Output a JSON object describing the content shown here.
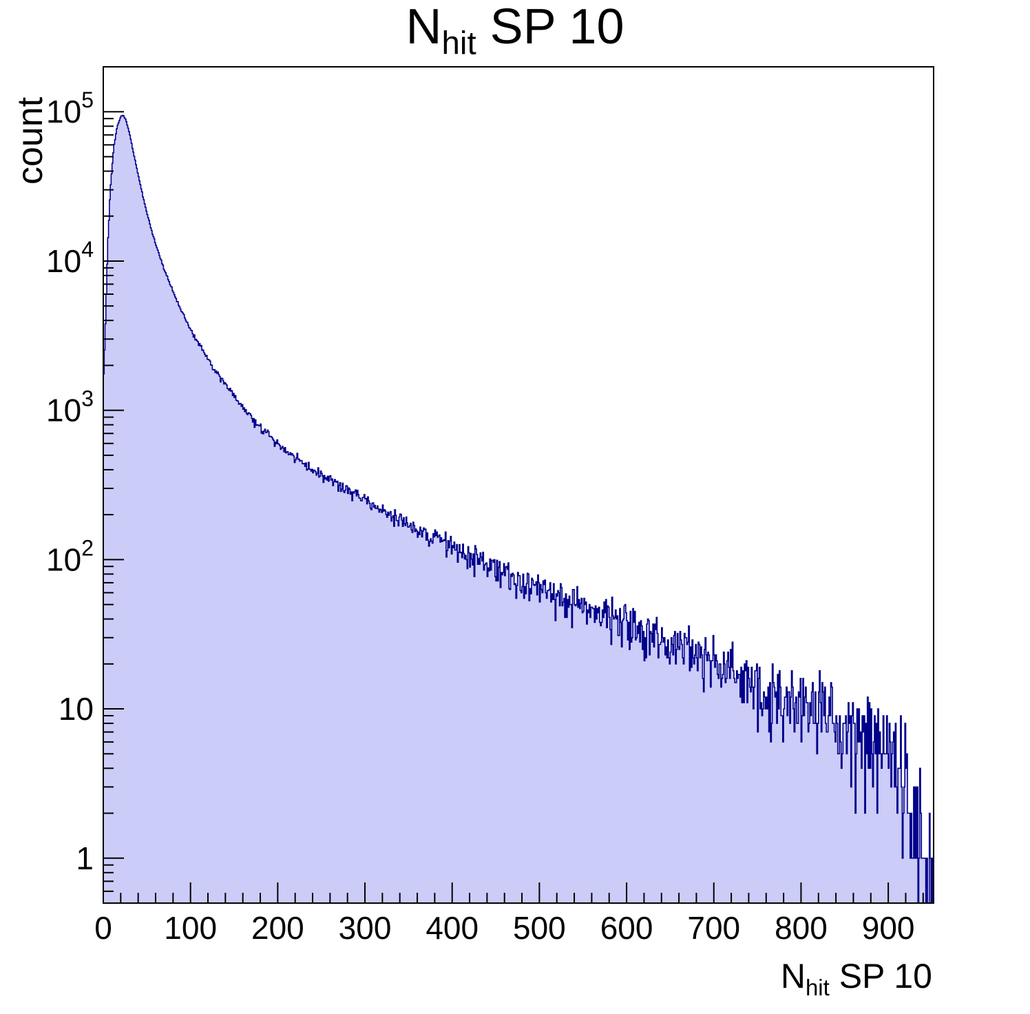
{
  "title": {
    "main": "N",
    "sub": "hit",
    "rest": " SP 10"
  },
  "y_axis_label": "count",
  "x_axis_label": {
    "main": "N",
    "sub": "hit",
    "rest": " SP 10"
  },
  "style": {
    "background": "#ffffff",
    "fill_color": "#ccccf8",
    "line_color": "#00008b",
    "frame_color": "#000000",
    "text_color": "#000000"
  },
  "chart_data": {
    "type": "bar",
    "subtype": "1d-histogram-filled-steps",
    "title": "N_hit SP 10",
    "xlabel": "N_hit SP 10",
    "ylabel": "count",
    "y_scale": "log",
    "grid": false,
    "legend": null,
    "x_range": [
      0,
      952
    ],
    "y_range": [
      0.5,
      200000
    ],
    "n_bins": 952,
    "peak": {
      "x": 22,
      "count": 95000
    },
    "axes": {
      "x": {
        "major_ticks": [
          0,
          100,
          200,
          300,
          400,
          500,
          600,
          700,
          800,
          900
        ],
        "minor_step": 20
      },
      "y": {
        "major_ticks": [
          {
            "value": 1,
            "base": "1",
            "sup": ""
          },
          {
            "value": 10,
            "base": "10",
            "sup": ""
          },
          {
            "value": 100,
            "base": "10",
            "sup": "2"
          },
          {
            "value": 1000,
            "base": "10",
            "sup": "3"
          },
          {
            "value": 10000,
            "base": "10",
            "sup": "4"
          },
          {
            "value": 100000,
            "base": "10",
            "sup": "5"
          }
        ]
      }
    },
    "anchors": {
      "x": [
        0,
        2,
        5,
        8,
        12,
        16,
        20,
        23,
        26,
        30,
        35,
        40,
        45,
        50,
        55,
        60,
        70,
        80,
        90,
        100,
        110,
        120,
        130,
        140,
        150,
        160,
        170,
        180,
        190,
        200,
        220,
        240,
        260,
        280,
        300,
        320,
        340,
        360,
        380,
        400,
        420,
        440,
        460,
        480,
        500,
        520,
        540,
        560,
        580,
        600,
        620,
        640,
        660,
        680,
        700,
        720,
        740,
        760,
        780,
        800,
        820,
        840,
        860,
        880,
        900,
        915,
        925,
        935,
        945,
        952
      ],
      "count": [
        1500,
        3000,
        12000,
        30000,
        58000,
        80000,
        93000,
        95000,
        88000,
        72000,
        52000,
        38000,
        28000,
        21000,
        16500,
        13000,
        8800,
        6200,
        4600,
        3500,
        2750,
        2200,
        1800,
        1500,
        1250,
        1050,
        900,
        780,
        680,
        600,
        480,
        400,
        340,
        290,
        248,
        215,
        185,
        160,
        140,
        122,
        107,
        94,
        83,
        74,
        66,
        58,
        52,
        46,
        41,
        37,
        33,
        29,
        26,
        23,
        20.5,
        18,
        16,
        14,
        12.5,
        11,
        9.7,
        8.5,
        7.4,
        6.3,
        5.2,
        4.0,
        3.0,
        2.0,
        1.2,
        0.8
      ]
    },
    "noise": "poisson",
    "seed": 20240917
  }
}
